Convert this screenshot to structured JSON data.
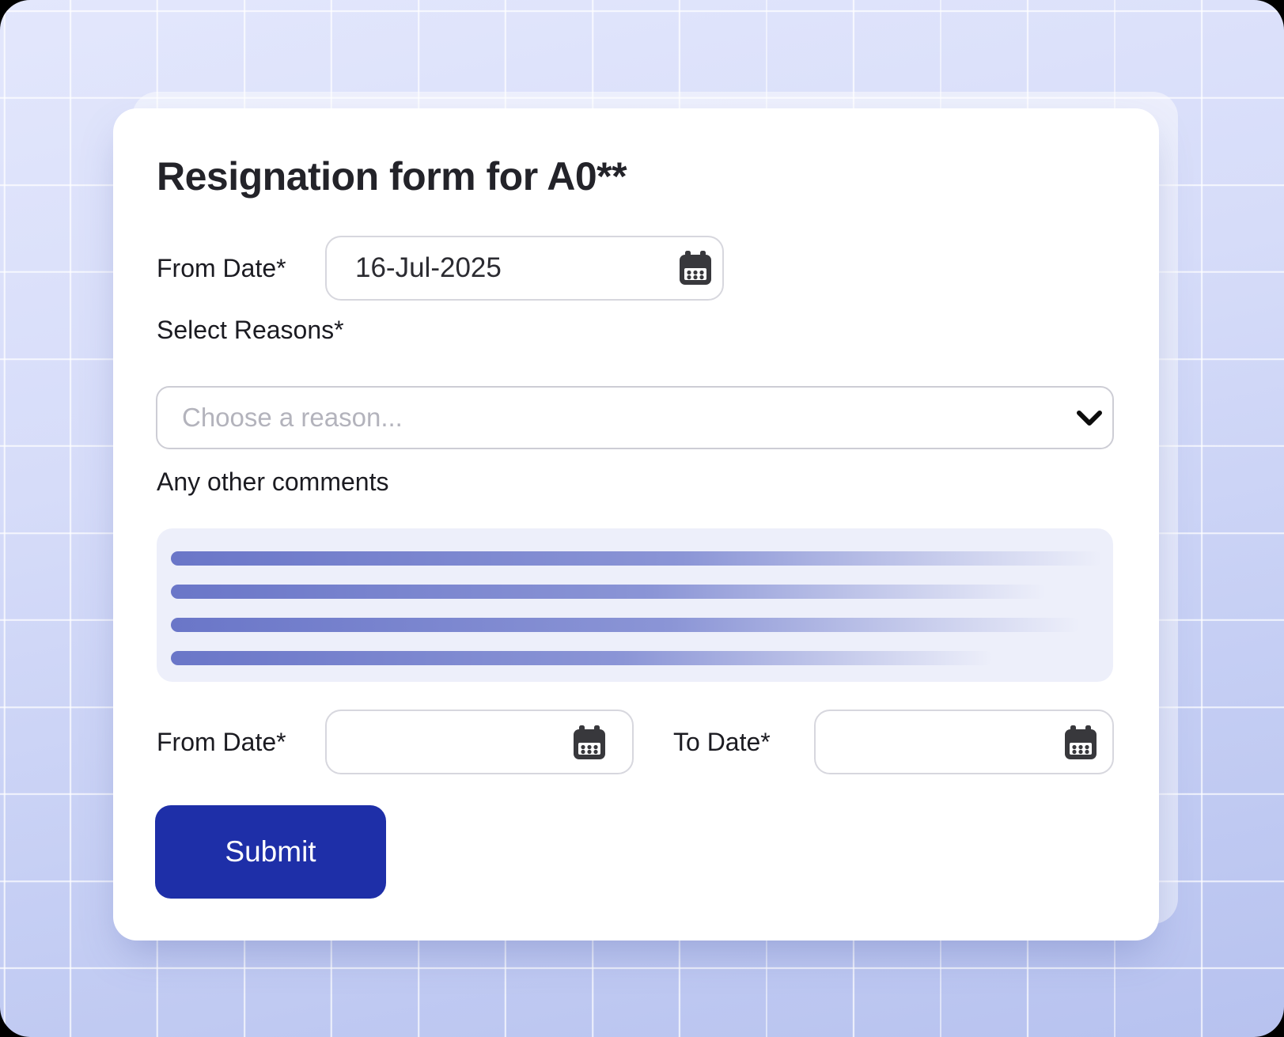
{
  "card": {
    "title": "Resignation form for A0**"
  },
  "fields": {
    "from_date_top": {
      "label": "From Date*",
      "value": "16-Jul-2025",
      "icon": "calendar-icon"
    },
    "reasons": {
      "label": "Select Reasons*",
      "placeholder": "Choose a reason...",
      "selected_value": "",
      "icon": "chevron-down-icon"
    },
    "comments": {
      "label": "Any other comments",
      "skeleton_bars": [
        1177,
        1106,
        1149,
        1039
      ]
    },
    "from_date_bottom": {
      "label": "From Date*",
      "value": "",
      "icon": "calendar-icon"
    },
    "to_date": {
      "label": "To Date*",
      "value": "",
      "icon": "calendar-icon"
    }
  },
  "actions": {
    "submit_label": "Submit"
  },
  "colors": {
    "submit_bg": "#1e2fa8",
    "skeleton_bar": "#6a76c8",
    "comments_box_bg": "#edeffa",
    "background_top": "#e3e7fc",
    "background_bottom": "#b7c2ef",
    "card_bg": "#ffffff",
    "input_border": "#d7d7de",
    "placeholder_text": "#b3b3bc",
    "title_text": "#232329"
  }
}
